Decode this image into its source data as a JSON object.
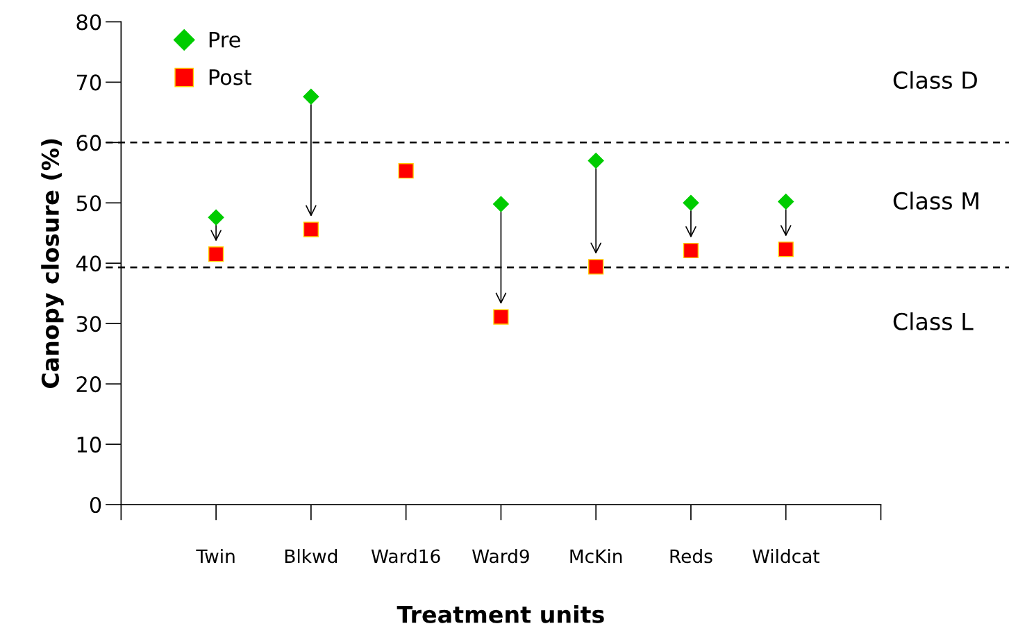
{
  "chart_data": {
    "type": "scatter",
    "xlabel": "Treatment units",
    "ylabel": "Canopy closure (%)",
    "categories": [
      "Twin",
      "Blkwd",
      "Ward16",
      "Ward9",
      "McKin",
      "Reds",
      "Wildcat"
    ],
    "series": [
      {
        "name": "Pre",
        "color": "#00cc00",
        "marker": "diamond",
        "values": [
          47.6,
          67.6,
          null,
          49.8,
          57.0,
          50.0,
          50.2
        ]
      },
      {
        "name": "Post",
        "color": "#ff0000",
        "marker": "square",
        "values": [
          41.5,
          45.6,
          55.3,
          31.1,
          39.4,
          42.1,
          42.3
        ]
      }
    ],
    "ylim": [
      0,
      80
    ],
    "yticks": [
      0,
      10,
      20,
      30,
      40,
      50,
      60,
      70,
      80
    ],
    "ref_lines": [
      {
        "axis": "y",
        "value": 60,
        "line_style": "dashed",
        "color": "#000000"
      },
      {
        "axis": "y",
        "value": 39.3,
        "line_style": "dashed",
        "color": "#000000"
      }
    ],
    "annotations": [
      "Class D",
      "Class M",
      "Class L"
    ],
    "legend": "top left",
    "grid": false
  }
}
